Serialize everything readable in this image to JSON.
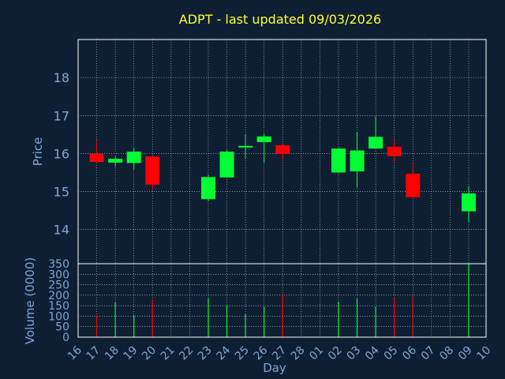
{
  "chart_data": {
    "type": "candlestick",
    "title": "ADPT - last updated 09/03/2026",
    "xlabel": "Day",
    "x_ticks": [
      "16",
      "17",
      "18",
      "19",
      "20",
      "21",
      "22",
      "23",
      "24",
      "25",
      "26",
      "27",
      "28",
      "01",
      "02",
      "03",
      "04",
      "05",
      "06",
      "07",
      "08",
      "09",
      "10"
    ],
    "price_panel": {
      "ylabel": "Price",
      "ylim": [
        13.1,
        19.0
      ],
      "y_ticks": [
        14,
        15,
        16,
        17,
        18
      ]
    },
    "volume_panel": {
      "ylabel": "Volume (0000)",
      "ylim": [
        0,
        350
      ],
      "y_ticks": [
        0,
        50,
        100,
        150,
        200,
        250,
        300,
        350
      ]
    },
    "grid": true,
    "colors": {
      "background": "#0f1f33",
      "plot_border": "#ffffff",
      "grid": "#ffffff",
      "up": "#00ff33",
      "down": "#ff0000",
      "text": "#7fa6d6",
      "title": "#ffff33"
    },
    "candles": [
      {
        "day": "17",
        "open": 15.99,
        "high": 16.36,
        "low": 15.74,
        "close": 15.78
      },
      {
        "day": "18",
        "open": 15.76,
        "high": 15.92,
        "low": 15.66,
        "close": 15.86
      },
      {
        "day": "19",
        "open": 15.75,
        "high": 16.15,
        "low": 15.58,
        "close": 16.05
      },
      {
        "day": "20",
        "open": 15.92,
        "high": 15.92,
        "low": 15.04,
        "close": 15.18
      },
      {
        "day": "23",
        "open": 14.8,
        "high": 15.45,
        "low": 14.75,
        "close": 15.38
      },
      {
        "day": "24",
        "open": 15.37,
        "high": 16.1,
        "low": 15.37,
        "close": 16.05
      },
      {
        "day": "25",
        "open": 16.18,
        "high": 16.5,
        "low": 15.85,
        "close": 16.2
      },
      {
        "day": "26",
        "open": 16.3,
        "high": 16.52,
        "low": 15.75,
        "close": 16.45
      },
      {
        "day": "27",
        "open": 16.22,
        "high": 16.22,
        "low": 15.8,
        "close": 15.99
      },
      {
        "day": "02",
        "open": 15.5,
        "high": 16.15,
        "low": 15.48,
        "close": 16.13
      },
      {
        "day": "03",
        "open": 15.53,
        "high": 16.57,
        "low": 15.1,
        "close": 16.08
      },
      {
        "day": "04",
        "open": 16.13,
        "high": 16.97,
        "low": 16.13,
        "close": 16.44
      },
      {
        "day": "05",
        "open": 16.18,
        "high": 16.35,
        "low": 15.75,
        "close": 15.93
      },
      {
        "day": "06",
        "open": 15.47,
        "high": 15.72,
        "low": 14.85,
        "close": 14.85
      },
      {
        "day": "09",
        "open": 14.48,
        "high": 15.15,
        "low": 14.18,
        "close": 14.95
      }
    ],
    "volumes": [
      {
        "day": "17",
        "value": 105,
        "direction": "down"
      },
      {
        "day": "18",
        "value": 165,
        "direction": "up"
      },
      {
        "day": "19",
        "value": 105,
        "direction": "up"
      },
      {
        "day": "20",
        "value": 180,
        "direction": "down"
      },
      {
        "day": "23",
        "value": 185,
        "direction": "up"
      },
      {
        "day": "24",
        "value": 150,
        "direction": "up"
      },
      {
        "day": "25",
        "value": 110,
        "direction": "up"
      },
      {
        "day": "26",
        "value": 145,
        "direction": "up"
      },
      {
        "day": "27",
        "value": 205,
        "direction": "down"
      },
      {
        "day": "02",
        "value": 170,
        "direction": "up"
      },
      {
        "day": "03",
        "value": 185,
        "direction": "up"
      },
      {
        "day": "04",
        "value": 145,
        "direction": "up"
      },
      {
        "day": "05",
        "value": 190,
        "direction": "down"
      },
      {
        "day": "06",
        "value": 195,
        "direction": "down"
      },
      {
        "day": "09",
        "value": 350,
        "direction": "up"
      }
    ]
  }
}
